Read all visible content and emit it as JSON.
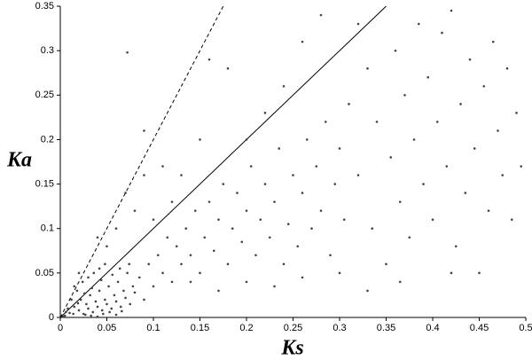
{
  "chart_data": {
    "type": "scatter",
    "x_label": "Ks",
    "y_label": "Ka",
    "xlim": [
      0,
      0.5
    ],
    "ylim": [
      0,
      0.35
    ],
    "xticks": [
      0,
      0.05,
      0.1,
      0.15,
      0.2,
      0.25,
      0.3,
      0.35,
      0.4,
      0.45,
      0.5
    ],
    "yticks": [
      0,
      0.05,
      0.1,
      0.15,
      0.2,
      0.25,
      0.3,
      0.35
    ],
    "color": "#444444",
    "reference_lines": [
      {
        "slope": 1,
        "style": "solid"
      },
      {
        "slope": 2,
        "style": "dashed"
      }
    ],
    "x": [
      0.01,
      0.015,
      0.02,
      0.022,
      0.025,
      0.028,
      0.03,
      0.032,
      0.035,
      0.038,
      0.04,
      0.042,
      0.045,
      0.048,
      0.05,
      0.052,
      0.055,
      0.058,
      0.06,
      0.062,
      0.065,
      0.068,
      0.07,
      0.072,
      0.075,
      0.078,
      0.08,
      0.005,
      0.008,
      0.012,
      0.018,
      0.024,
      0.03,
      0.036,
      0.042,
      0.048,
      0.02,
      0.015,
      0.027,
      0.033,
      0.04,
      0.046,
      0.053,
      0.06,
      0.066,
      0.003,
      0.006,
      0.014,
      0.019,
      0.026,
      0.034,
      0.044,
      0.056,
      0.064,
      0.074,
      0.085,
      0.09,
      0.095,
      0.1,
      0.105,
      0.11,
      0.115,
      0.12,
      0.125,
      0.13,
      0.135,
      0.14,
      0.145,
      0.15,
      0.155,
      0.16,
      0.165,
      0.17,
      0.175,
      0.18,
      0.185,
      0.19,
      0.195,
      0.2,
      0.205,
      0.21,
      0.215,
      0.22,
      0.225,
      0.23,
      0.235,
      0.24,
      0.245,
      0.25,
      0.255,
      0.26,
      0.265,
      0.27,
      0.275,
      0.28,
      0.285,
      0.29,
      0.295,
      0.3,
      0.305,
      0.31,
      0.06,
      0.07,
      0.08,
      0.09,
      0.1,
      0.11,
      0.12,
      0.13,
      0.05,
      0.04,
      0.072,
      0.16,
      0.18,
      0.2,
      0.15,
      0.09,
      0.14,
      0.17,
      0.2,
      0.23,
      0.26,
      0.3,
      0.33,
      0.32,
      0.33,
      0.335,
      0.34,
      0.35,
      0.355,
      0.36,
      0.365,
      0.37,
      0.375,
      0.38,
      0.385,
      0.39,
      0.395,
      0.4,
      0.405,
      0.41,
      0.415,
      0.42,
      0.425,
      0.43,
      0.435,
      0.44,
      0.445,
      0.45,
      0.455,
      0.46,
      0.465,
      0.47,
      0.475,
      0.48,
      0.485,
      0.49,
      0.495,
      0.365,
      0.42,
      0.28,
      0.26,
      0.24,
      0.22,
      0.32
    ],
    "values": [
      0.005,
      0.012,
      0.008,
      0.02,
      0.004,
      0.015,
      0.01,
      0.025,
      0.006,
      0.018,
      0.012,
      0.03,
      0.008,
      0.02,
      0.015,
      0.035,
      0.01,
      0.025,
      0.018,
      0.04,
      0.012,
      0.03,
      0.022,
      0.05,
      0.015,
      0.035,
      0.028,
      0.002,
      0.01,
      0.02,
      0.03,
      0.04,
      0.045,
      0.05,
      0.055,
      0.06,
      0.05,
      0.035,
      0.003,
      0.002,
      0.001,
      0.004,
      0.006,
      0.003,
      0.007,
      0.001,
      0.006,
      0.004,
      0.016,
      0.027,
      0.033,
      0.042,
      0.048,
      0.055,
      0.06,
      0.045,
      0.02,
      0.06,
      0.035,
      0.07,
      0.05,
      0.09,
      0.04,
      0.08,
      0.06,
      0.1,
      0.07,
      0.12,
      0.05,
      0.09,
      0.13,
      0.075,
      0.11,
      0.15,
      0.06,
      0.1,
      0.14,
      0.085,
      0.12,
      0.17,
      0.07,
      0.11,
      0.15,
      0.09,
      0.13,
      0.19,
      0.06,
      0.105,
      0.16,
      0.08,
      0.14,
      0.2,
      0.1,
      0.17,
      0.12,
      0.22,
      0.07,
      0.15,
      0.19,
      0.11,
      0.24,
      0.1,
      0.14,
      0.12,
      0.16,
      0.11,
      0.17,
      0.13,
      0.16,
      0.08,
      0.09,
      0.298,
      0.29,
      0.28,
      0.2,
      0.2,
      0.21,
      0.04,
      0.03,
      0.04,
      0.035,
      0.045,
      0.05,
      0.03,
      0.16,
      0.28,
      0.1,
      0.22,
      0.06,
      0.18,
      0.3,
      0.13,
      0.25,
      0.09,
      0.2,
      0.33,
      0.15,
      0.27,
      0.11,
      0.22,
      0.32,
      0.17,
      0.345,
      0.08,
      0.24,
      0.14,
      0.29,
      0.19,
      0.05,
      0.26,
      0.12,
      0.31,
      0.21,
      0.16,
      0.28,
      0.11,
      0.23,
      0.17,
      0.04,
      0.05,
      0.34,
      0.31,
      0.26,
      0.23,
      0.33
    ]
  }
}
